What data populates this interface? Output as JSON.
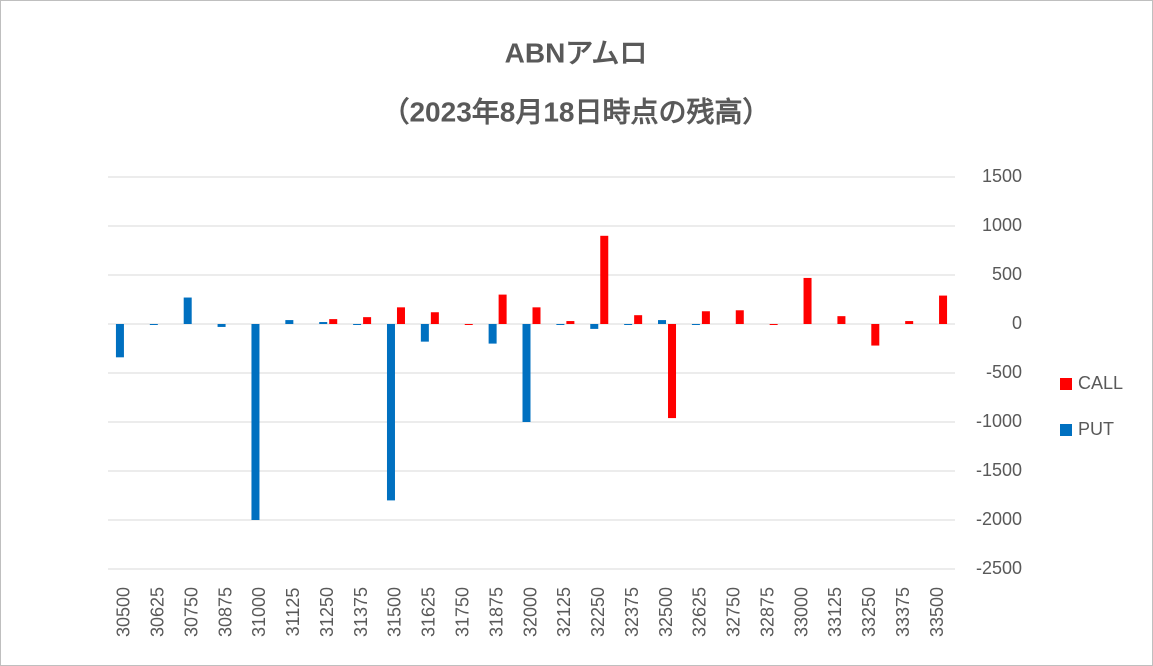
{
  "chart_data": {
    "type": "bar",
    "title": "ABNアムロ",
    "subtitle": "（2023年8月18日時点の残高）",
    "categories": [
      "30500",
      "30625",
      "30750",
      "30875",
      "31000",
      "31125",
      "31250",
      "31375",
      "31500",
      "31625",
      "31750",
      "31875",
      "32000",
      "32125",
      "32250",
      "32375",
      "32500",
      "32625",
      "32750",
      "32875",
      "33000",
      "33125",
      "33250",
      "33375",
      "33500"
    ],
    "series": [
      {
        "name": "CALL",
        "color": "#ff0000",
        "values": [
          0,
          0,
          0,
          0,
          0,
          0,
          50,
          70,
          170,
          120,
          -10,
          300,
          170,
          30,
          900,
          90,
          -960,
          130,
          140,
          -10,
          470,
          80,
          -220,
          30,
          290
        ]
      },
      {
        "name": "PUT",
        "color": "#0070c0",
        "values": [
          -340,
          -10,
          270,
          -30,
          -2000,
          40,
          20,
          -10,
          -1800,
          -180,
          0,
          -200,
          -1000,
          -10,
          -50,
          -10,
          40,
          -10,
          0,
          0,
          0,
          0,
          0,
          0,
          0
        ]
      }
    ],
    "ylim": [
      -2500,
      1500
    ],
    "yticks": [
      -2500,
      -2000,
      -1500,
      -1000,
      -500,
      0,
      500,
      1000,
      1500
    ],
    "grid": true,
    "legend": "right"
  }
}
